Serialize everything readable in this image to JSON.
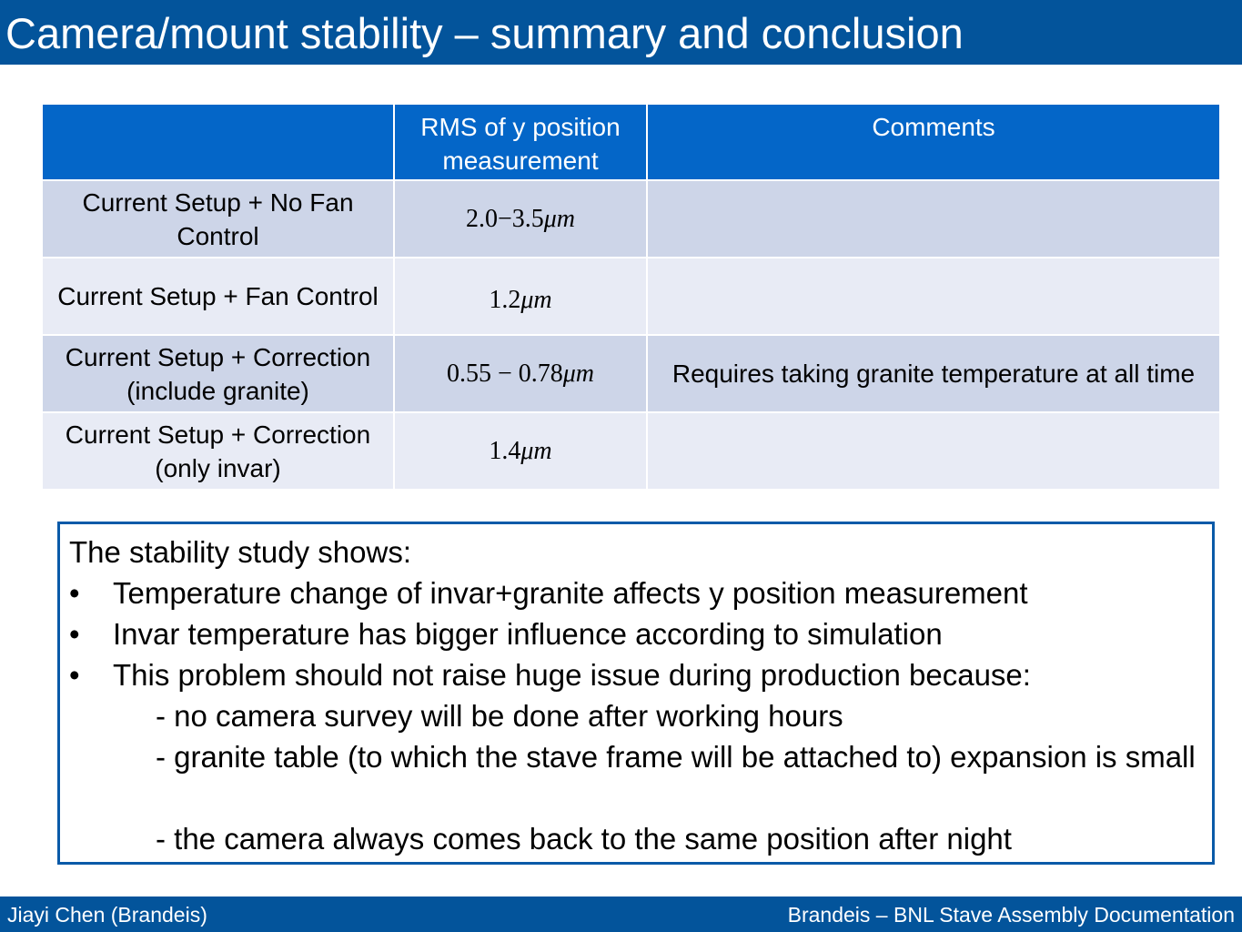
{
  "title": "Camera/mount stability – summary and conclusion",
  "table": {
    "headers": [
      "",
      "RMS of y position measurement",
      "Comments"
    ],
    "rows": [
      {
        "setup": "Current Setup + No Fan Control",
        "rms_value": "2.0−3.5",
        "rms_unit": "μm",
        "comment": ""
      },
      {
        "setup": "Current Setup + Fan Control",
        "rms_value": "1.2",
        "rms_unit": "μm",
        "comment": ""
      },
      {
        "setup": "Current Setup + Correction (include granite)",
        "rms_value": "0.55 − 0.78",
        "rms_unit": "μm",
        "comment": "Requires taking granite temperature at all time"
      },
      {
        "setup": "Current Setup + Correction (only invar)",
        "rms_value": "1.4",
        "rms_unit": "μm",
        "comment": ""
      }
    ]
  },
  "conclusion": {
    "intro": "The stability study shows:",
    "bullet_symbol": "•",
    "bullets": [
      "Temperature change of invar+granite affects y position measurement",
      "Invar temperature has bigger influence according to simulation",
      "This problem should not raise huge issue during production because:"
    ],
    "sub_items": [
      "- no camera survey will be done after working hours",
      "- granite table (to which the stave frame will be attached to) expansion is small",
      "- the camera always comes back to the same position after night"
    ]
  },
  "footer": {
    "author": "Jiayi Chen (Brandeis)",
    "project": "Brandeis – BNL Stave Assembly Documentation"
  },
  "colors": {
    "title_bar": "#03549b",
    "table_header": "#0466c8",
    "row_dark": "#cdd5e8",
    "row_light": "#e8ebf5",
    "box_border": "#0a5aa8"
  }
}
